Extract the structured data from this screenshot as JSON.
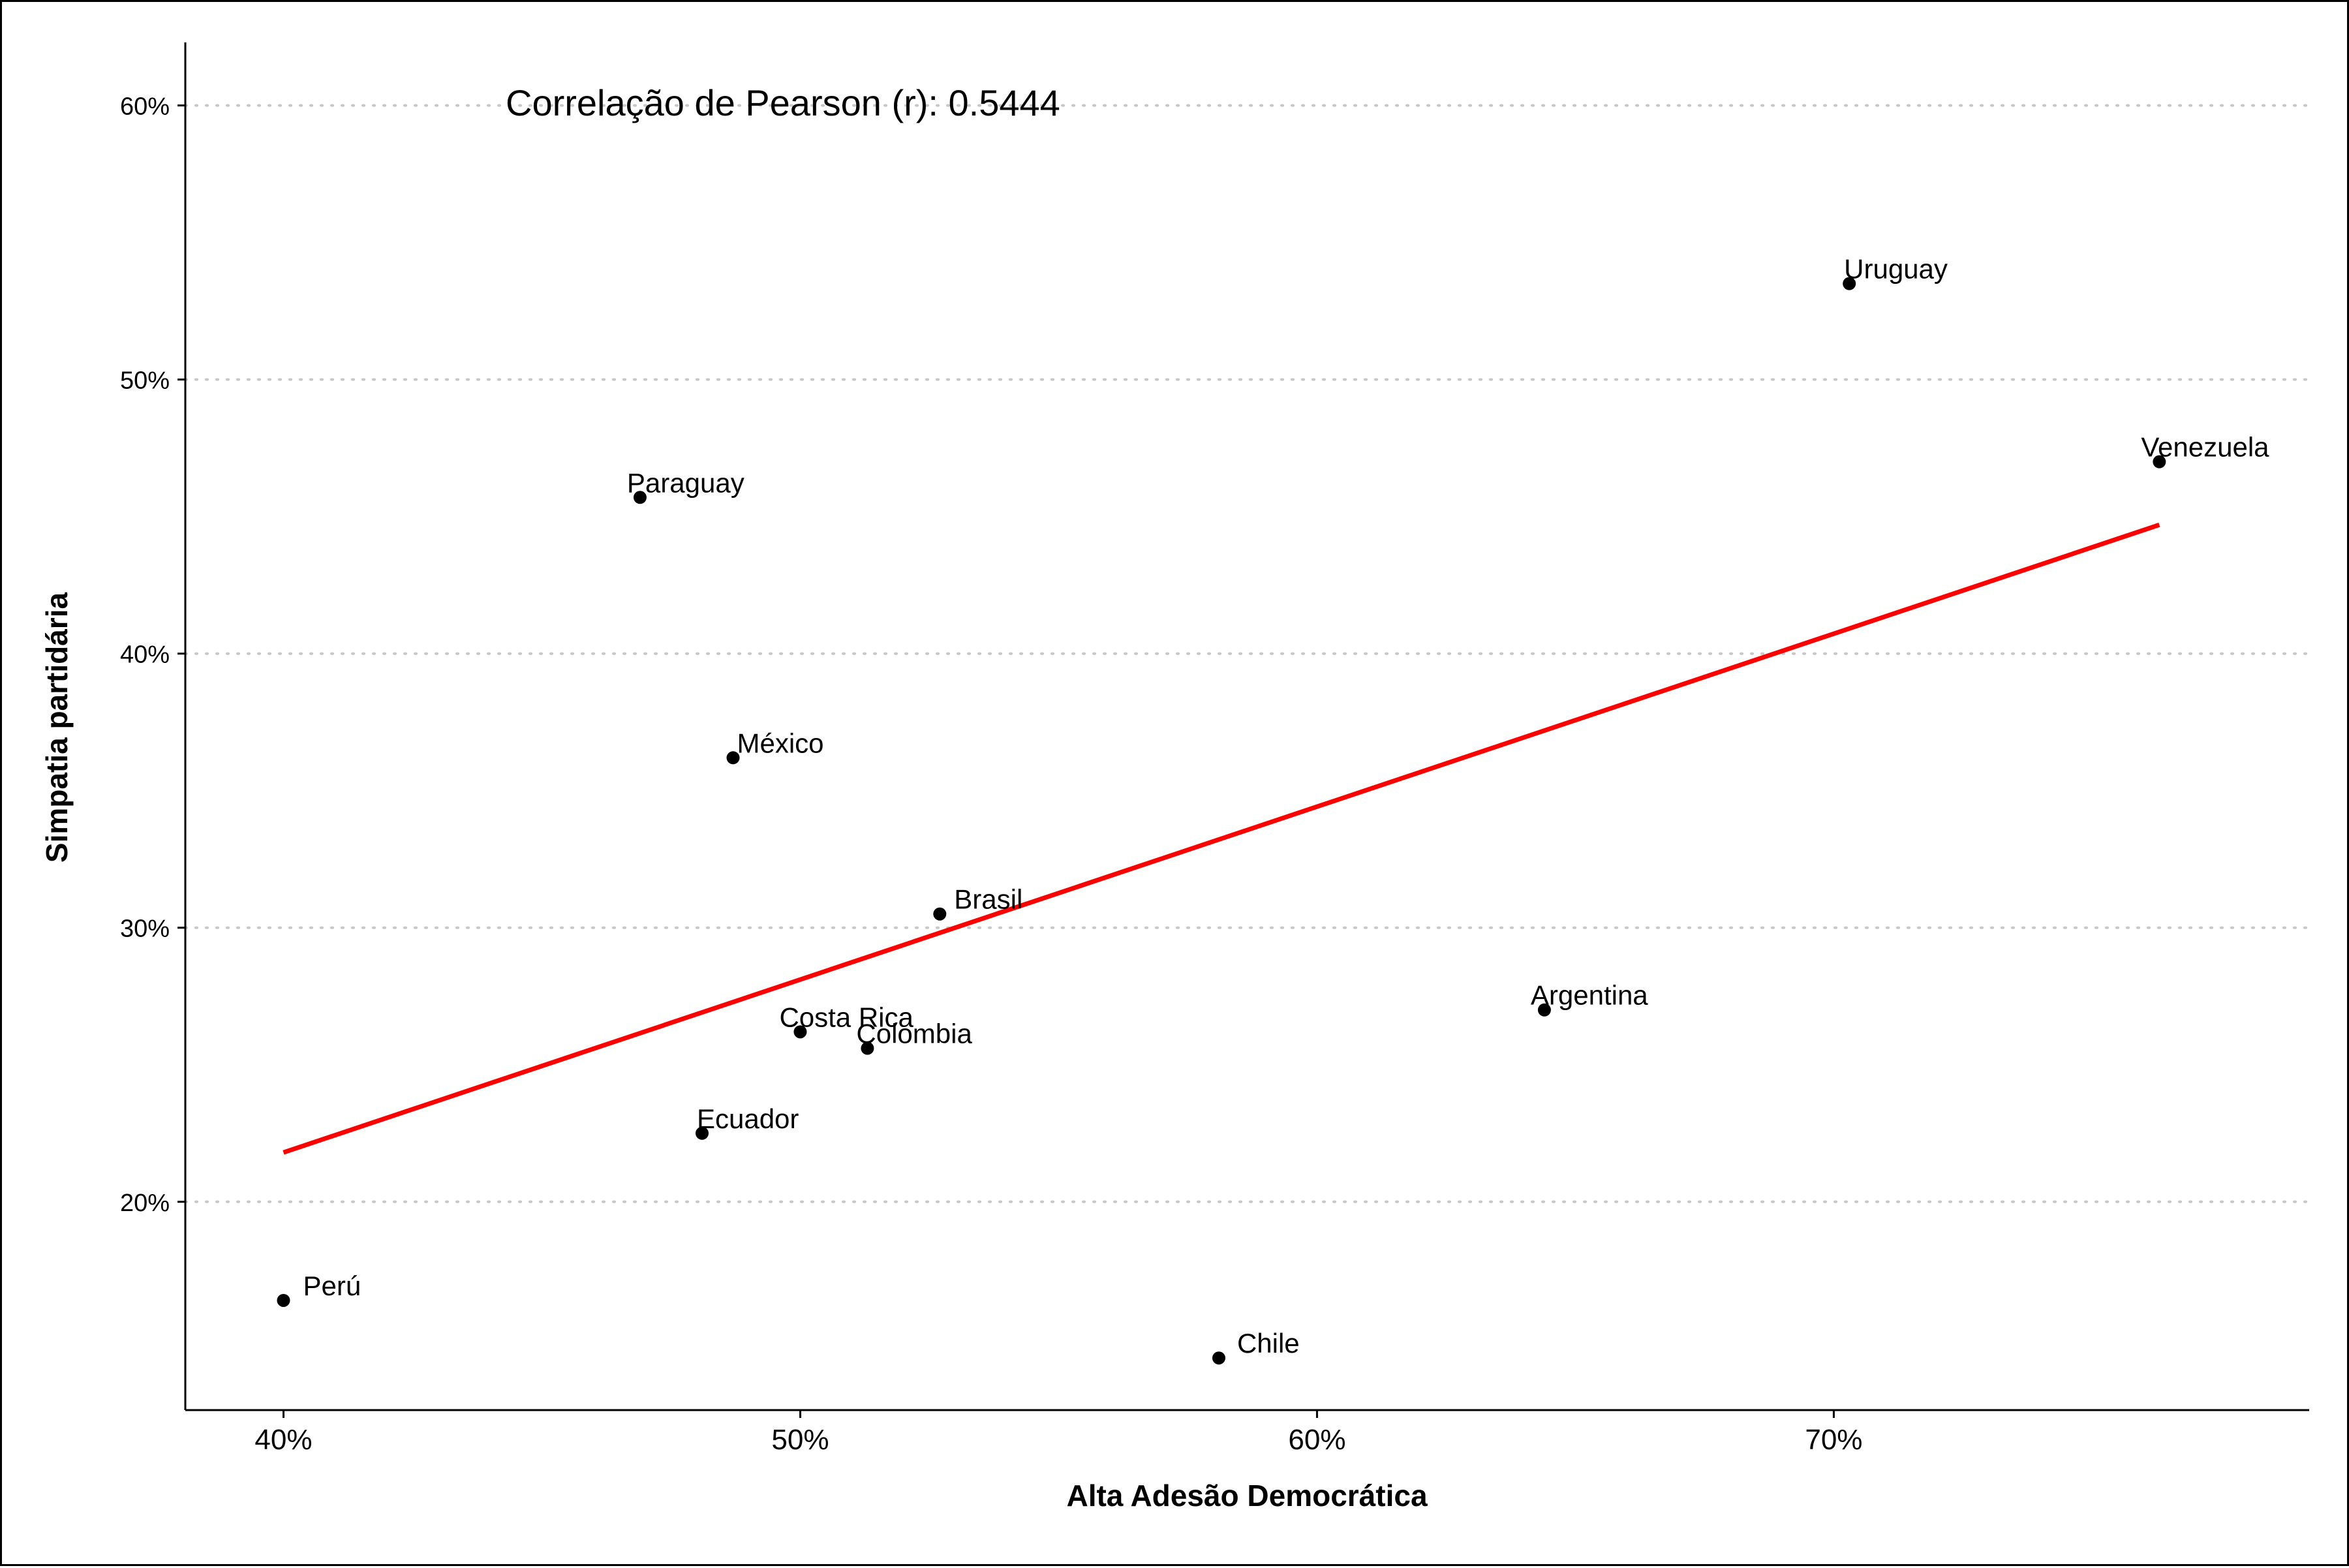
{
  "chart_data": {
    "type": "scatter",
    "title": "",
    "xlabel": "Alta Adesão Democrática",
    "ylabel": "Simpatia partidária",
    "annotation": "Correlação de Pearson (r): 0.5444",
    "xlim": [
      0.381,
      0.792
    ],
    "ylim": [
      0.124,
      0.623
    ],
    "x_ticks": [
      0.4,
      0.5,
      0.6,
      0.7
    ],
    "x_tick_labels": [
      "40%",
      "50%",
      "60%",
      "70%"
    ],
    "y_ticks": [
      0.2,
      0.3,
      0.4,
      0.5,
      0.6
    ],
    "y_tick_labels": [
      "20%",
      "30%",
      "40%",
      "50%",
      "60%"
    ],
    "grid": "horizontal dotted",
    "points": [
      {
        "label": "Perú",
        "x": 0.4,
        "y": 0.164
      },
      {
        "label": "Paraguay",
        "x": 0.469,
        "y": 0.457
      },
      {
        "label": "Ecuador",
        "x": 0.481,
        "y": 0.225
      },
      {
        "label": "México",
        "x": 0.487,
        "y": 0.362
      },
      {
        "label": "Costa Rica",
        "x": 0.5,
        "y": 0.262
      },
      {
        "label": "Colombia",
        "x": 0.513,
        "y": 0.256
      },
      {
        "label": "Brasil",
        "x": 0.527,
        "y": 0.305
      },
      {
        "label": "Chile",
        "x": 0.581,
        "y": 0.143
      },
      {
        "label": "Argentina",
        "x": 0.644,
        "y": 0.27
      },
      {
        "label": "Uruguay",
        "x": 0.703,
        "y": 0.535
      },
      {
        "label": "Venezuela",
        "x": 0.763,
        "y": 0.47
      }
    ],
    "trend_line": {
      "color": "#ff0000",
      "x": [
        0.4,
        0.763
      ],
      "y": [
        0.218,
        0.447
      ]
    },
    "point_color": "#000000"
  }
}
